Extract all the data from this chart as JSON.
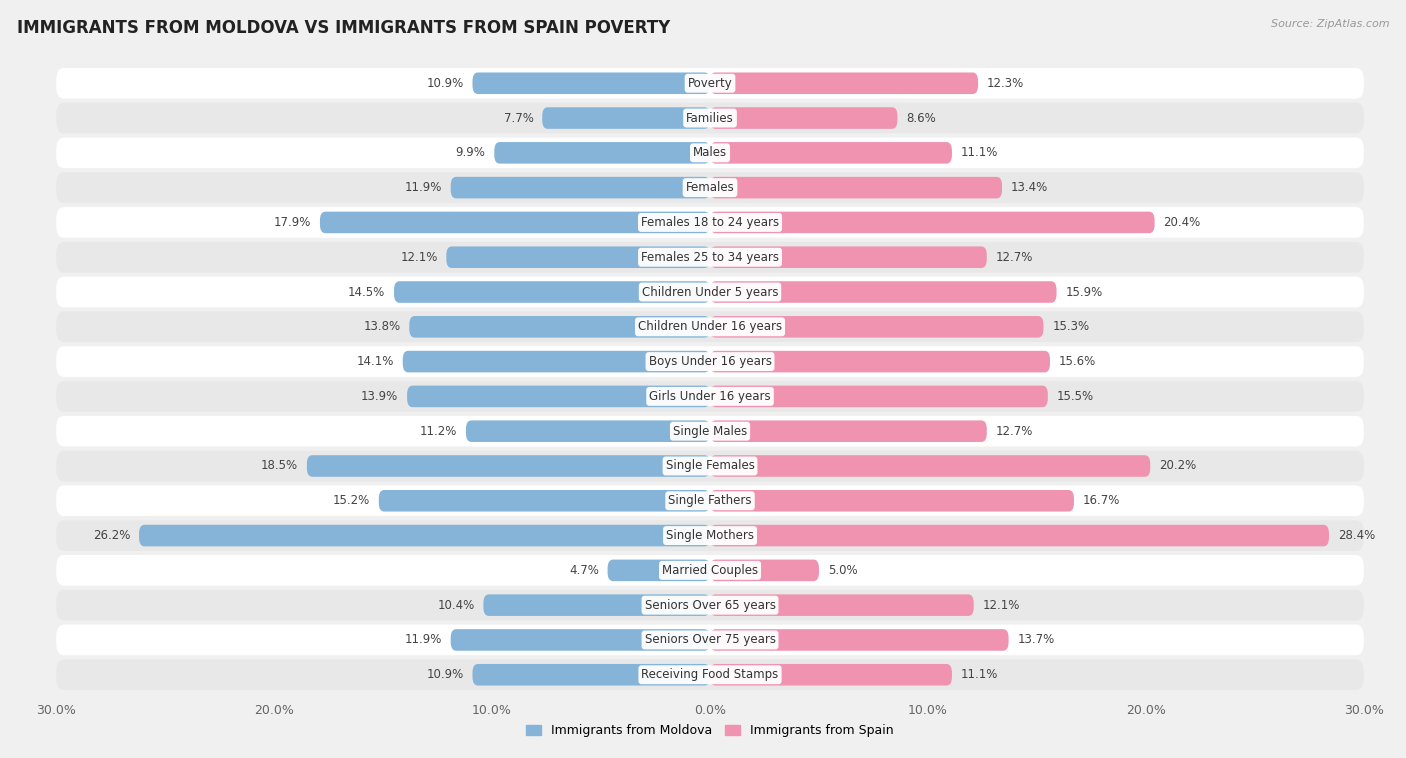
{
  "title": "IMMIGRANTS FROM MOLDOVA VS IMMIGRANTS FROM SPAIN POVERTY",
  "source": "Source: ZipAtlas.com",
  "categories": [
    "Poverty",
    "Families",
    "Males",
    "Females",
    "Females 18 to 24 years",
    "Females 25 to 34 years",
    "Children Under 5 years",
    "Children Under 16 years",
    "Boys Under 16 years",
    "Girls Under 16 years",
    "Single Males",
    "Single Females",
    "Single Fathers",
    "Single Mothers",
    "Married Couples",
    "Seniors Over 65 years",
    "Seniors Over 75 years",
    "Receiving Food Stamps"
  ],
  "moldova_values": [
    10.9,
    7.7,
    9.9,
    11.9,
    17.9,
    12.1,
    14.5,
    13.8,
    14.1,
    13.9,
    11.2,
    18.5,
    15.2,
    26.2,
    4.7,
    10.4,
    11.9,
    10.9
  ],
  "spain_values": [
    12.3,
    8.6,
    11.1,
    13.4,
    20.4,
    12.7,
    15.9,
    15.3,
    15.6,
    15.5,
    12.7,
    20.2,
    16.7,
    28.4,
    5.0,
    12.1,
    13.7,
    11.1
  ],
  "moldova_color": "#85b4d8",
  "spain_color": "#f093b0",
  "highlight_threshold": 15.0,
  "axis_limit": 30.0,
  "background_color": "#f0f0f0",
  "row_color_light": "#ffffff",
  "row_color_dark": "#e8e8e8",
  "label_fontsize": 8.5,
  "value_fontsize": 8.5,
  "title_fontsize": 12,
  "source_fontsize": 8,
  "legend_label_moldova": "Immigrants from Moldova",
  "legend_label_spain": "Immigrants from Spain"
}
